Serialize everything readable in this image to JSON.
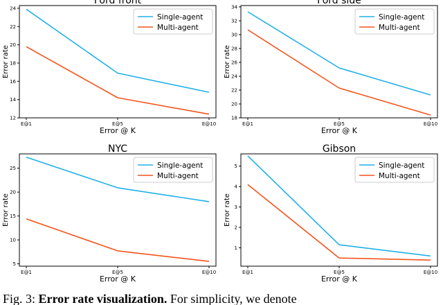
{
  "chart_data": [
    {
      "type": "line",
      "title": "Ford front",
      "xlabel": "Error @ K",
      "ylabel": "Error rate",
      "categories": [
        "E@1",
        "E@5",
        "E@10"
      ],
      "yticks": [
        12,
        14,
        16,
        18,
        20,
        22,
        24
      ],
      "ylim": [
        12,
        24.3
      ],
      "series": [
        {
          "name": "Single-agent",
          "color": "#1fb0e8",
          "values": [
            23.9,
            16.9,
            14.8
          ]
        },
        {
          "name": "Multi-agent",
          "color": "#f2541b",
          "values": [
            19.8,
            14.2,
            12.4
          ]
        }
      ]
    },
    {
      "type": "line",
      "title": "Ford side",
      "xlabel": "Error @ K",
      "ylabel": "Error rate",
      "categories": [
        "E@1",
        "E@5",
        "E@10"
      ],
      "yticks": [
        18,
        20,
        22,
        24,
        26,
        28,
        30,
        32,
        34
      ],
      "ylim": [
        18,
        34.2
      ],
      "series": [
        {
          "name": "Single-agent",
          "color": "#1fb0e8",
          "values": [
            33.3,
            25.2,
            21.3
          ]
        },
        {
          "name": "Multi-agent",
          "color": "#f2541b",
          "values": [
            30.7,
            22.3,
            18.4
          ]
        }
      ]
    },
    {
      "type": "line",
      "title": "NYC",
      "xlabel": "Error @ K",
      "ylabel": "Error rate",
      "categories": [
        "E@1",
        "E@5",
        "E@10"
      ],
      "yticks": [
        5,
        10,
        15,
        20,
        25
      ],
      "ylim": [
        4.5,
        28
      ],
      "series": [
        {
          "name": "Single-agent",
          "color": "#1fb0e8",
          "values": [
            27.3,
            20.9,
            18.0
          ]
        },
        {
          "name": "Multi-agent",
          "color": "#f2541b",
          "values": [
            14.4,
            7.7,
            5.5
          ]
        }
      ]
    },
    {
      "type": "line",
      "title": "Gibson",
      "xlabel": "Error @ K",
      "ylabel": "Error rate",
      "categories": [
        "E@1",
        "E@5",
        "E@10"
      ],
      "yticks": [
        1,
        2,
        3,
        4,
        5
      ],
      "ylim": [
        0.1,
        5.6
      ],
      "series": [
        {
          "name": "Single-agent",
          "color": "#1fb0e8",
          "values": [
            5.5,
            1.15,
            0.6
          ]
        },
        {
          "name": "Multi-agent",
          "color": "#f2541b",
          "values": [
            4.1,
            0.5,
            0.4
          ]
        }
      ]
    }
  ],
  "caption": {
    "prefix": "Fig. 3: ",
    "bold": "Error rate visualization.",
    "rest": " For simplicity, we denote"
  }
}
